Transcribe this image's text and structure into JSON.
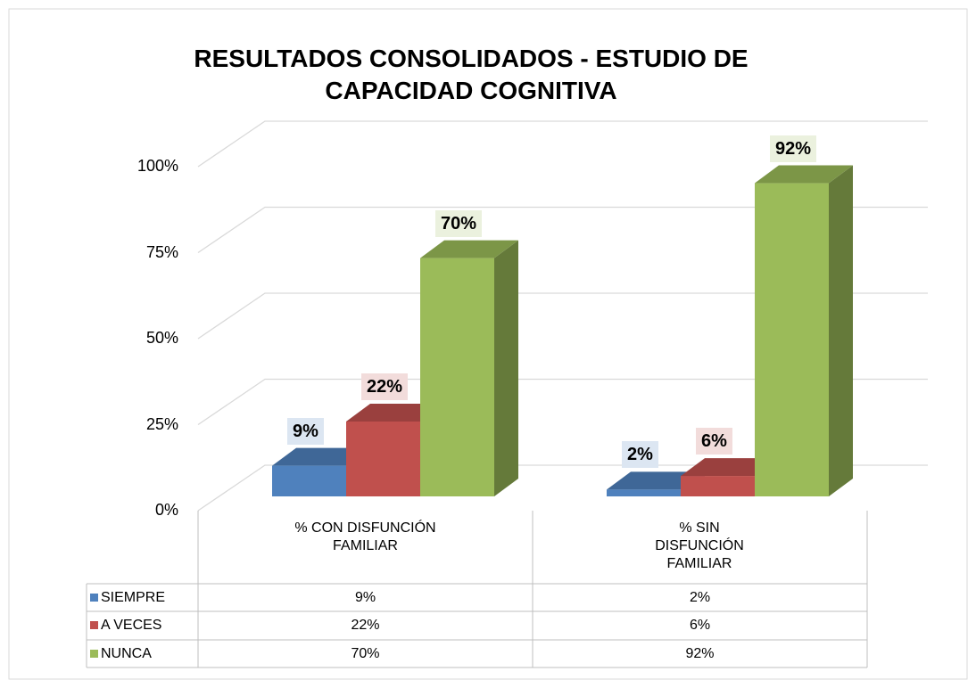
{
  "chart_data": {
    "type": "bar3d",
    "title": "RESULTADOS CONSOLIDADOS - ESTUDIO DE CAPACIDAD COGNITIVA",
    "categories": [
      "% CON DISFUNCIÓN FAMILIAR",
      "% SIN DISFUNCIÓN FAMILIAR"
    ],
    "series": [
      {
        "name": "SIEMPRE",
        "color": "#4f81bd",
        "values": [
          9,
          2
        ],
        "value_labels": [
          "9%",
          "2%"
        ]
      },
      {
        "name": "A VECES",
        "color": "#c0504d",
        "values": [
          22,
          6
        ],
        "value_labels": [
          "22%",
          "6%"
        ]
      },
      {
        "name": "NUNCA",
        "color": "#9bbb59",
        "values": [
          70,
          92
        ],
        "value_labels": [
          "70%",
          "92%"
        ]
      }
    ],
    "ylim": [
      0,
      100
    ],
    "yticks": [
      {
        "value": 0,
        "label": "0%"
      },
      {
        "value": 25,
        "label": "25%"
      },
      {
        "value": 50,
        "label": "50%"
      },
      {
        "value": 75,
        "label": "75%"
      },
      {
        "value": 100,
        "label": "100%"
      }
    ],
    "grid": true,
    "data_table": true
  }
}
